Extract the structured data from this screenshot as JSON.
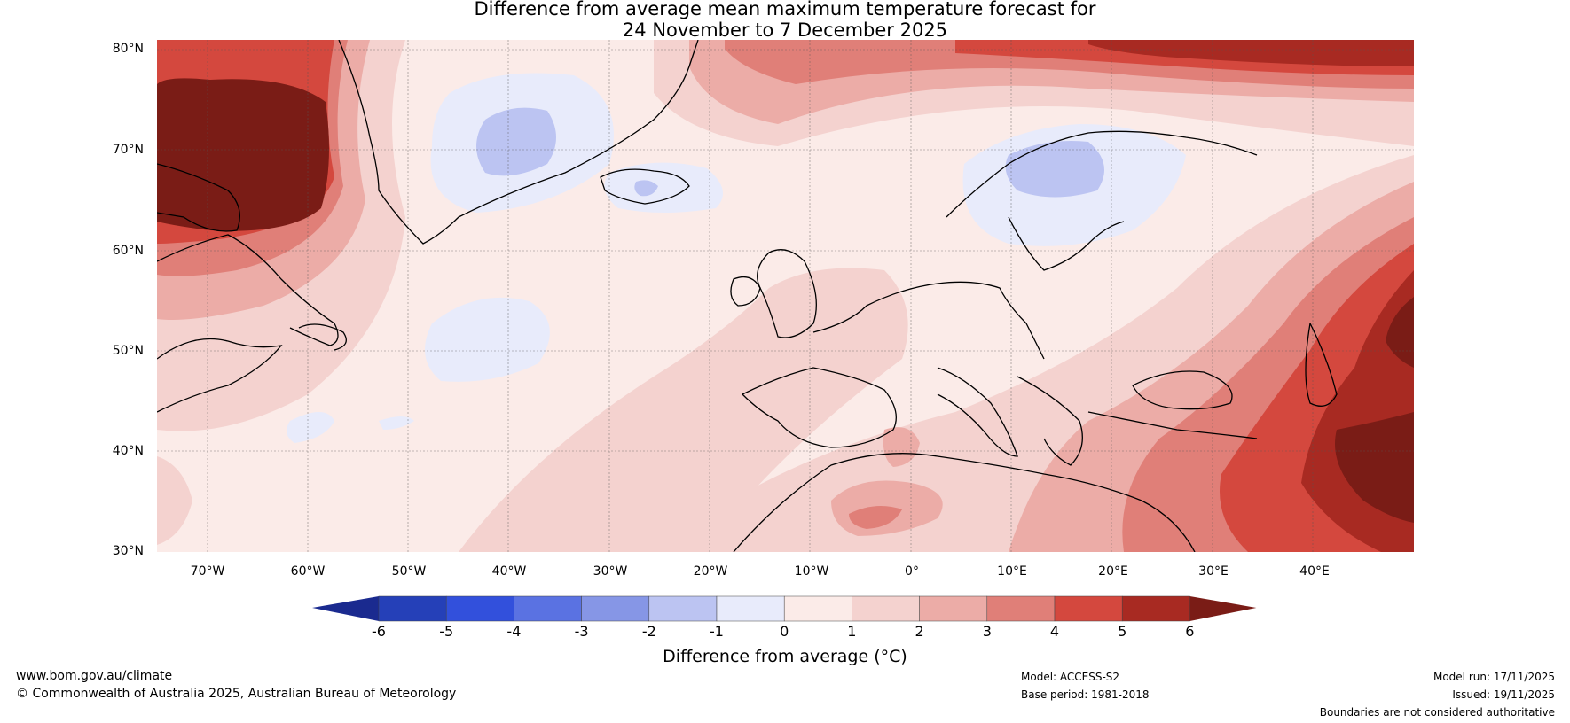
{
  "title_line1": "Difference from average mean maximum temperature forecast for",
  "title_line2": "24 November to 7 December 2025",
  "lat_labels": [
    "80°N",
    "70°N",
    "60°N",
    "50°N",
    "40°N",
    "30°N"
  ],
  "lon_labels": [
    "70°W",
    "60°W",
    "50°W",
    "40°W",
    "30°W",
    "20°W",
    "10°W",
    "0°",
    "10°E",
    "20°E",
    "30°E",
    "40°E"
  ],
  "colorbar": {
    "ticks": [
      "-6",
      "-5",
      "-4",
      "-3",
      "-2",
      "-1",
      "0",
      "1",
      "2",
      "3",
      "4",
      "5",
      "6"
    ],
    "colors": [
      "#1a2a8f",
      "#2540b8",
      "#3250dc",
      "#5a72e2",
      "#8696e6",
      "#bcc4f2",
      "#e8ebfb",
      "#fbebe8",
      "#f4d2cf",
      "#ecaca7",
      "#e07f78",
      "#d4483e",
      "#a82a22",
      "#7a1c16"
    ],
    "label": "Difference from average (°C)"
  },
  "map": {
    "lon_range": [
      -75,
      50
    ],
    "lat_range": [
      30,
      81
    ],
    "background_color": "#fbebe8"
  },
  "footer": {
    "website": "www.bom.gov.au/climate",
    "copyright": "© Commonwealth of Australia 2025, Australian Bureau of Meteorology",
    "model": "Model: ACCESS-S2",
    "base_period": "Base period: 1981-2018",
    "model_run": "Model run: 17/11/2025",
    "issued": "Issued: 19/11/2025",
    "disclaimer": "Boundaries are not considered authoritative"
  }
}
